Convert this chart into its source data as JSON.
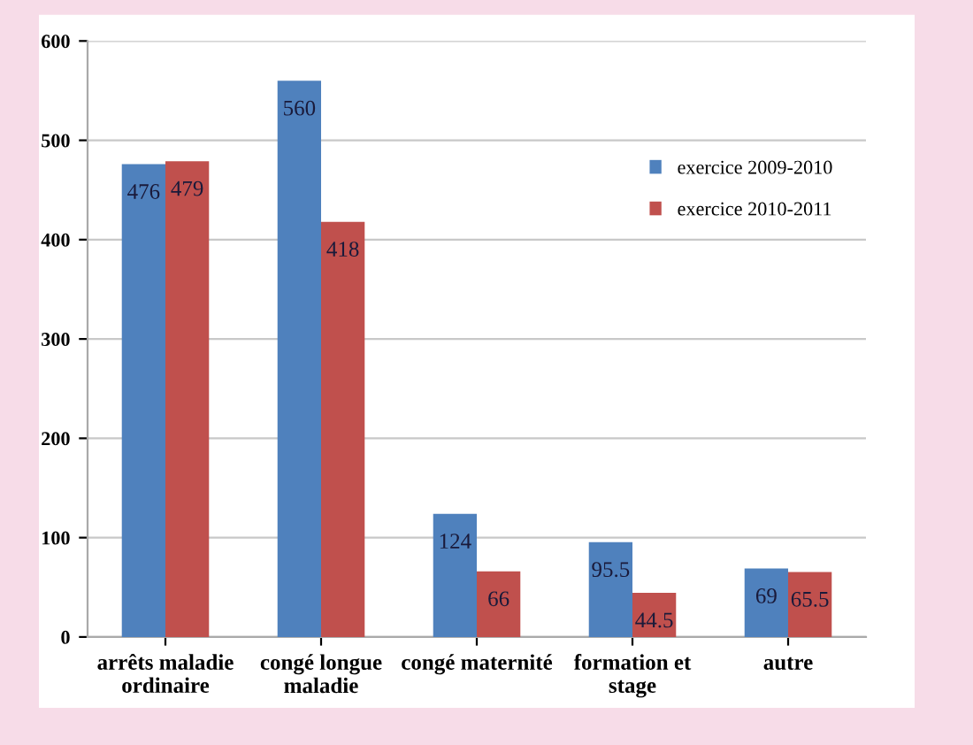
{
  "chart_data": {
    "type": "bar",
    "categories": [
      "arrêts maladie ordinaire",
      "congé longue maladie",
      "congé maternité",
      "formation et stage",
      "autre"
    ],
    "series": [
      {
        "name": "exercice 2009-2010",
        "color": "#4f81bd",
        "values": [
          476,
          560,
          124,
          95.5,
          69
        ]
      },
      {
        "name": "exercice 2010-2011",
        "color": "#c0504d",
        "values": [
          479,
          418,
          66,
          44.5,
          65.5
        ]
      }
    ],
    "ylim": [
      0,
      600
    ],
    "yticks": [
      0,
      100,
      200,
      300,
      400,
      500,
      600
    ],
    "grid": "y",
    "legend": "top right",
    "data_labels": true
  }
}
